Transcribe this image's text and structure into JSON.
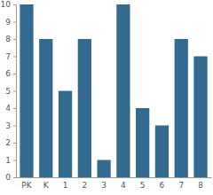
{
  "chart_data": {
    "type": "bar",
    "categories": [
      "PK",
      "K",
      "1",
      "2",
      "3",
      "4",
      "5",
      "6",
      "7",
      "8"
    ],
    "values": [
      10,
      8,
      5,
      8,
      1,
      10,
      4,
      3,
      8,
      7
    ],
    "color": "#336a90",
    "ylim": [
      0,
      10
    ],
    "yticks": [
      0,
      1,
      2,
      3,
      4,
      5,
      6,
      7,
      8,
      9,
      10
    ],
    "grid": false
  }
}
